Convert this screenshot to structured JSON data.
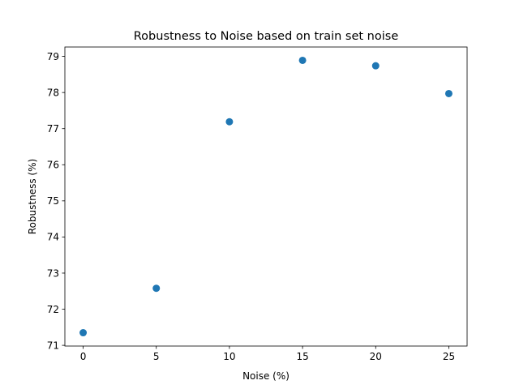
{
  "chart_data": {
    "type": "scatter",
    "title": "Robustness to Noise based on train set noise",
    "xlabel": "Noise (%)",
    "ylabel": "Robustness (%)",
    "xlim": [
      -1.25,
      26.25
    ],
    "ylim": [
      70.98,
      79.26
    ],
    "xticks": [
      0,
      5,
      10,
      15,
      20,
      25
    ],
    "yticks": [
      71,
      72,
      73,
      74,
      75,
      76,
      77,
      78,
      79
    ],
    "grid": false,
    "series": [
      {
        "color": "#1f77b4",
        "points": [
          {
            "x": 0,
            "y": 71.35
          },
          {
            "x": 5,
            "y": 72.58
          },
          {
            "x": 10,
            "y": 77.19
          },
          {
            "x": 15,
            "y": 78.89
          },
          {
            "x": 20,
            "y": 78.74
          },
          {
            "x": 25,
            "y": 77.97
          }
        ]
      }
    ]
  }
}
